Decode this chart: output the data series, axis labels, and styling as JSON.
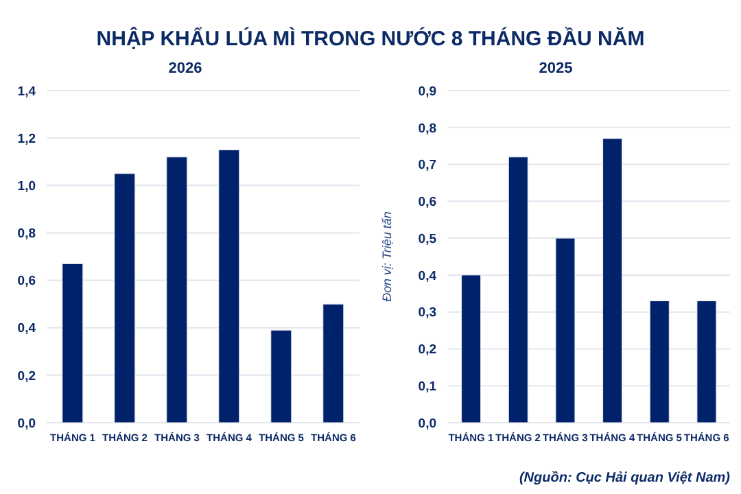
{
  "chart_data": [
    {
      "type": "bar",
      "title": "NHẬP KHẨU LÚA MÌ TRONG NƯỚC 8 THÁNG ĐẦU NĂM",
      "subtitle": "2026",
      "categories": [
        "THÁNG 1",
        "THÁNG 2",
        "THÁNG 3",
        "THÁNG 4",
        "THÁNG 5",
        "THÁNG 6"
      ],
      "series": [
        {
          "color": "#00226a",
          "values": [
            0.67,
            1.05,
            1.12,
            1.15,
            0.39,
            0.5
          ]
        }
      ],
      "ylim": [
        0,
        1.4
      ],
      "yticks": [
        {
          "value": 0,
          "label": "0,0"
        },
        {
          "value": 0.2,
          "label": "0,2"
        },
        {
          "value": 0.4,
          "label": "0,4"
        },
        {
          "value": 0.6,
          "label": "0,6"
        },
        {
          "value": 0.8,
          "label": "0,8"
        },
        {
          "value": 1,
          "label": "1,0"
        },
        {
          "value": 1.2,
          "label": "1,2"
        },
        {
          "value": 1.4,
          "label": "1,4"
        }
      ],
      "grid": "y"
    },
    {
      "type": "bar",
      "subtitle": "2025",
      "ylabel": "Đơn vị: Triệu tấn",
      "categories": [
        "THÁNG 1",
        "THÁNG 2",
        "THÁNG 3",
        "THÁNG 4",
        "THÁNG 5",
        "THÁNG 6"
      ],
      "series": [
        {
          "color": "#00226a",
          "values": [
            0.4,
            0.72,
            0.5,
            0.77,
            0.33,
            0.33
          ]
        }
      ],
      "ylim": [
        0,
        0.9
      ],
      "yticks": [
        {
          "value": 0,
          "label": "0,0"
        },
        {
          "value": 0.1,
          "label": "0,1"
        },
        {
          "value": 0.2,
          "label": "0,2"
        },
        {
          "value": 0.3,
          "label": "0,3"
        },
        {
          "value": 0.4,
          "label": "0,4"
        },
        {
          "value": 0.5,
          "label": "0,5"
        },
        {
          "value": 0.6,
          "label": "0,6"
        },
        {
          "value": 0.7,
          "label": "0,7"
        },
        {
          "value": 0.8,
          "label": "0,8"
        },
        {
          "value": 0.9,
          "label": "0,9"
        }
      ],
      "grid": "y",
      "annotations": [
        "(Nguồn: Cục Hải quan Việt Nam)"
      ]
    }
  ]
}
